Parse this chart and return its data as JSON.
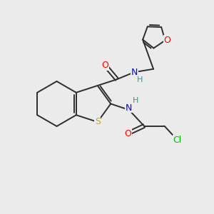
{
  "background_color": "#ebebeb",
  "bond_color": "#2d2d2d",
  "atom_colors": {
    "S": "#ccaa00",
    "O": "#ff0000",
    "N": "#0000ff",
    "Cl": "#00bb00",
    "H": "#4a8a8a",
    "C": "#2d2d2d"
  },
  "figsize": [
    3.0,
    3.0
  ],
  "dpi": 100
}
